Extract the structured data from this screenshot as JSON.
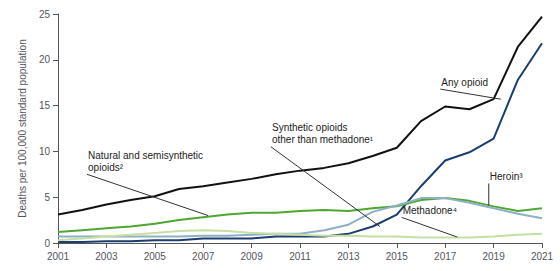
{
  "chart_data": {
    "type": "line",
    "ylabel": "Deaths per 100,000 standard population",
    "x": [
      2001,
      2002,
      2003,
      2004,
      2005,
      2006,
      2007,
      2008,
      2009,
      2010,
      2011,
      2012,
      2013,
      2014,
      2015,
      2016,
      2017,
      2018,
      2019,
      2020,
      2021
    ],
    "series": [
      {
        "color": "#111111",
        "values": [
          3.1,
          3.6,
          4.2,
          4.7,
          5.1,
          5.9,
          6.2,
          6.6,
          7.0,
          7.5,
          7.9,
          8.2,
          8.7,
          9.5,
          10.4,
          13.3,
          14.9,
          14.6,
          15.7,
          21.4,
          24.7
        ]
      },
      {
        "color": "#1b3d6f",
        "values": [
          0.1,
          0.1,
          0.2,
          0.2,
          0.3,
          0.3,
          0.5,
          0.5,
          0.5,
          0.7,
          0.7,
          0.7,
          1.0,
          1.8,
          3.1,
          6.2,
          9.0,
          9.9,
          11.4,
          17.8,
          21.8
        ]
      },
      {
        "color": "#4da832",
        "values": [
          1.2,
          1.4,
          1.6,
          1.8,
          2.1,
          2.5,
          2.8,
          3.1,
          3.3,
          3.3,
          3.5,
          3.6,
          3.5,
          3.8,
          4.0,
          4.7,
          4.9,
          4.6,
          4.0,
          3.5,
          3.8
        ]
      },
      {
        "color": "#8fafc5",
        "values": [
          0.7,
          0.7,
          0.7,
          0.7,
          0.7,
          0.7,
          0.8,
          0.8,
          0.9,
          1.0,
          1.0,
          1.4,
          2.0,
          3.4,
          4.1,
          4.9,
          4.9,
          4.4,
          3.8,
          3.2,
          2.7
        ]
      },
      {
        "color": "#c5dfa5",
        "values": [
          0.3,
          0.5,
          0.7,
          0.9,
          1.1,
          1.3,
          1.4,
          1.3,
          1.1,
          1.0,
          0.9,
          0.8,
          0.8,
          0.7,
          0.7,
          0.6,
          0.6,
          0.6,
          0.7,
          0.9,
          1.0
        ]
      }
    ],
    "annotations": [
      {
        "text": "Any opioid",
        "x": 2019.3,
        "y": 15.7,
        "text_x": 2016.8,
        "text_y": 16.8
      },
      {
        "text": "Synthetic opioids\nother than methadone¹",
        "x": 2014.3,
        "y": 1.8,
        "text_x": 2009.8,
        "text_y": 10.5
      },
      {
        "text": "Natural and semisynthetic\nopioids²",
        "x": 2007.2,
        "y": 3.0,
        "text_x": 2002.2,
        "text_y": 7.5
      },
      {
        "text": "Heroin³",
        "x": 2018.8,
        "y": 4.1,
        "text_x": 2018.8,
        "text_y": 6.5
      },
      {
        "text": "Methadone⁴",
        "x": 2017.5,
        "y": 0.65,
        "text_x": 2015.2,
        "text_y": 2.8
      }
    ],
    "xlim": [
      2001,
      2021
    ],
    "xticks": [
      2001,
      2003,
      2005,
      2007,
      2009,
      2011,
      2013,
      2015,
      2017,
      2019,
      2021
    ],
    "ylim": [
      0,
      25
    ],
    "yticks": [
      0,
      5,
      10,
      15,
      20,
      25
    ],
    "grid": false,
    "legend": "none"
  }
}
